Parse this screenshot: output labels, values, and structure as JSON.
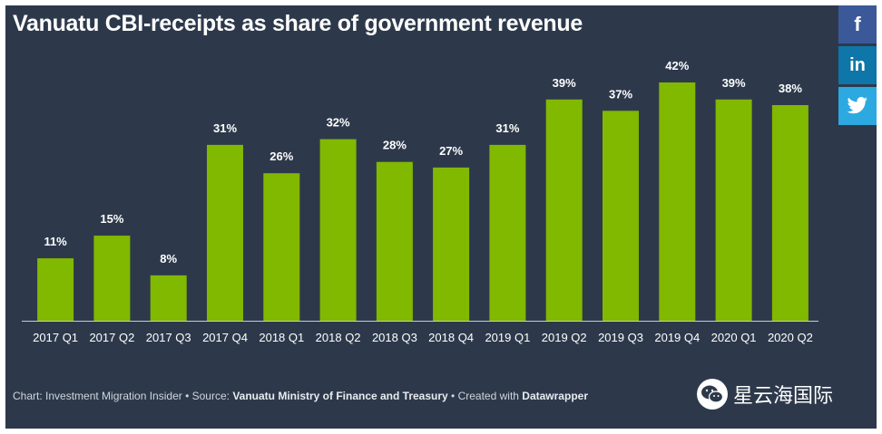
{
  "chart_data": {
    "type": "bar",
    "title": "Vanuatu CBI-receipts as share of government revenue",
    "categories": [
      "2017 Q1",
      "2017 Q2",
      "2017 Q3",
      "2017 Q4",
      "2018 Q1",
      "2018 Q2",
      "2018 Q3",
      "2018 Q4",
      "2019 Q1",
      "2019 Q2",
      "2019 Q3",
      "2019 Q4",
      "2020 Q1",
      "2020 Q2"
    ],
    "values": [
      11,
      15,
      8,
      31,
      26,
      32,
      28,
      27,
      31,
      39,
      37,
      42,
      39,
      38
    ],
    "labels": [
      "11%",
      "15%",
      "8%",
      "31%",
      "26%",
      "32%",
      "28%",
      "27%",
      "31%",
      "39%",
      "37%",
      "42%",
      "39%",
      "38%"
    ],
    "ylim": [
      0,
      42
    ],
    "bar_color": "#81b800",
    "xlabel": "",
    "ylabel": ""
  },
  "colors": {
    "background": "#2d394b",
    "text": "#ffffff",
    "baseline": "#c7cdd4"
  },
  "footer": {
    "prefix": "Chart: Investment Migration Insider • Source: ",
    "source": "Vanuatu Ministry of Finance and Treasury",
    "middle": " • Created with ",
    "tool": "Datawrapper"
  },
  "social": {
    "facebook": "f",
    "linkedin": "in",
    "twitter_icon": "twitter-bird"
  },
  "watermark": {
    "text": "星云海国际",
    "icon": "wechat-icon"
  }
}
